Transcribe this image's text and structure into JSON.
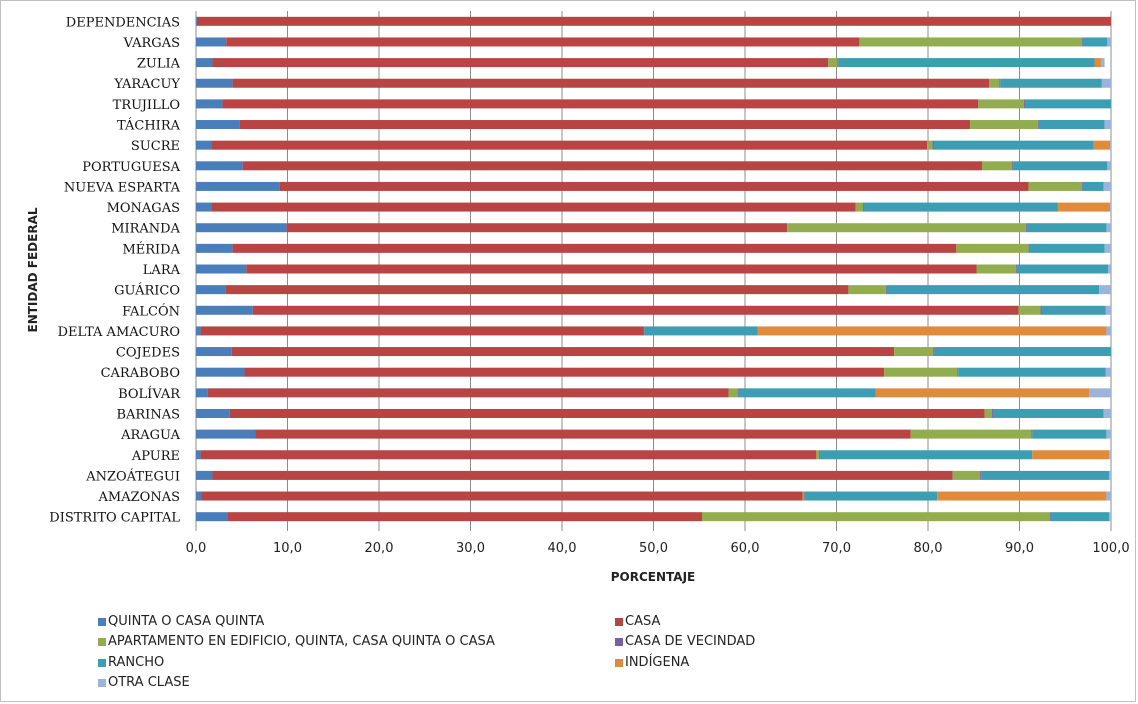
{
  "chart_data": {
    "type": "bar",
    "orientation": "horizontal",
    "stacked": true,
    "ylabel": "ENTIDAD FEDERAL",
    "xlabel": "PORCENTAJE",
    "xlim": [
      0,
      100
    ],
    "xticks": [
      "0,0",
      "10,0",
      "20,0",
      "30,0",
      "40,0",
      "50,0",
      "60,0",
      "70,0",
      "80,0",
      "90,0",
      "100,0"
    ],
    "grid": true,
    "legend_position": "bottom",
    "categories": [
      "DEPENDENCIAS",
      "VARGAS",
      "ZULIA",
      "YARACUY",
      "TRUJILLO",
      "TÁCHIRA",
      "SUCRE",
      "PORTUGUESA",
      "NUEVA ESPARTA",
      "MONAGAS",
      "MIRANDA",
      "MÉRIDA",
      "LARA",
      "GUÁRICO",
      "FALCÓN",
      "DELTA AMACURO",
      "COJEDES",
      "CARABOBO",
      "BOLÍVAR",
      "BARINAS",
      "ARAGUA",
      "APURE",
      "ANZOÁTEGUI",
      "AMAZONAS",
      "DISTRITO CAPITAL"
    ],
    "series": [
      {
        "name": "QUINTA O CASA QUINTA",
        "color": "#4a7ebb",
        "values": [
          0.1,
          3.3,
          1.8,
          4.0,
          2.9,
          4.8,
          1.7,
          5.1,
          9.1,
          1.7,
          9.9,
          4.0,
          5.5,
          3.2,
          6.2,
          0.5,
          3.9,
          5.3,
          1.3,
          3.7,
          6.5,
          0.5,
          1.8,
          0.6,
          3.4
        ]
      },
      {
        "name": "CASA",
        "color": "#b84543",
        "values": [
          99.9,
          69.2,
          67.3,
          82.7,
          82.6,
          79.8,
          78.2,
          80.8,
          81.9,
          70.4,
          54.7,
          79.1,
          79.8,
          68.1,
          83.7,
          48.4,
          72.4,
          69.9,
          56.9,
          82.5,
          71.6,
          67.3,
          80.9,
          65.7,
          51.9
        ]
      },
      {
        "name": "APARTAMENTO EN EDIFICIO, QUINTA, CASA QUINTA O CASA",
        "color": "#92ad4f",
        "values": [
          0.0,
          24.3,
          1.0,
          1.1,
          5.0,
          7.4,
          0.6,
          3.3,
          5.8,
          0.8,
          26.1,
          7.9,
          4.3,
          4.1,
          2.4,
          0.0,
          4.3,
          8.0,
          1.0,
          0.8,
          13.2,
          0.3,
          3.0,
          0.2,
          38.0
        ]
      },
      {
        "name": "CASA DE VECINDAD",
        "color": "#7a5fa0",
        "values": [
          0,
          0.1,
          0.1,
          0.1,
          0.1,
          0.1,
          0.1,
          0.1,
          0.1,
          0.1,
          0.1,
          0.1,
          0.1,
          0.1,
          0.1,
          0.1,
          0.1,
          0.1,
          0.1,
          0.1,
          0.1,
          0.1,
          0.1,
          0.1,
          0.1
        ]
      },
      {
        "name": "RANCHO",
        "color": "#3c9db3",
        "values": [
          0.0,
          2.7,
          28.0,
          11.1,
          9.4,
          7.2,
          17.5,
          10.3,
          2.3,
          21.2,
          8.7,
          8.2,
          10.0,
          23.2,
          7.0,
          12.4,
          19.3,
          16.1,
          15.0,
          12.1,
          8.1,
          23.2,
          14.0,
          14.4,
          6.4
        ]
      },
      {
        "name": "INDÍGENA",
        "color": "#e08a3c",
        "values": [
          0.0,
          0.0,
          0.7,
          0.0,
          0.0,
          0.0,
          1.8,
          0.0,
          0.0,
          5.7,
          0.0,
          0.0,
          0.0,
          0.0,
          0.0,
          38.1,
          0.0,
          0.0,
          23.3,
          0.0,
          0.0,
          8.4,
          0.0,
          18.5,
          0.0
        ]
      },
      {
        "name": "OTRA CLASE",
        "color": "#9cb3da",
        "values": [
          0.0,
          0.4,
          0.4,
          1.0,
          0.0,
          0.7,
          0.1,
          0.4,
          0.8,
          0.1,
          0.5,
          0.7,
          0.3,
          1.3,
          0.6,
          0.5,
          0.0,
          0.6,
          2.4,
          0.8,
          0.6,
          0.2,
          0.2,
          0.6,
          0.3
        ]
      }
    ]
  }
}
